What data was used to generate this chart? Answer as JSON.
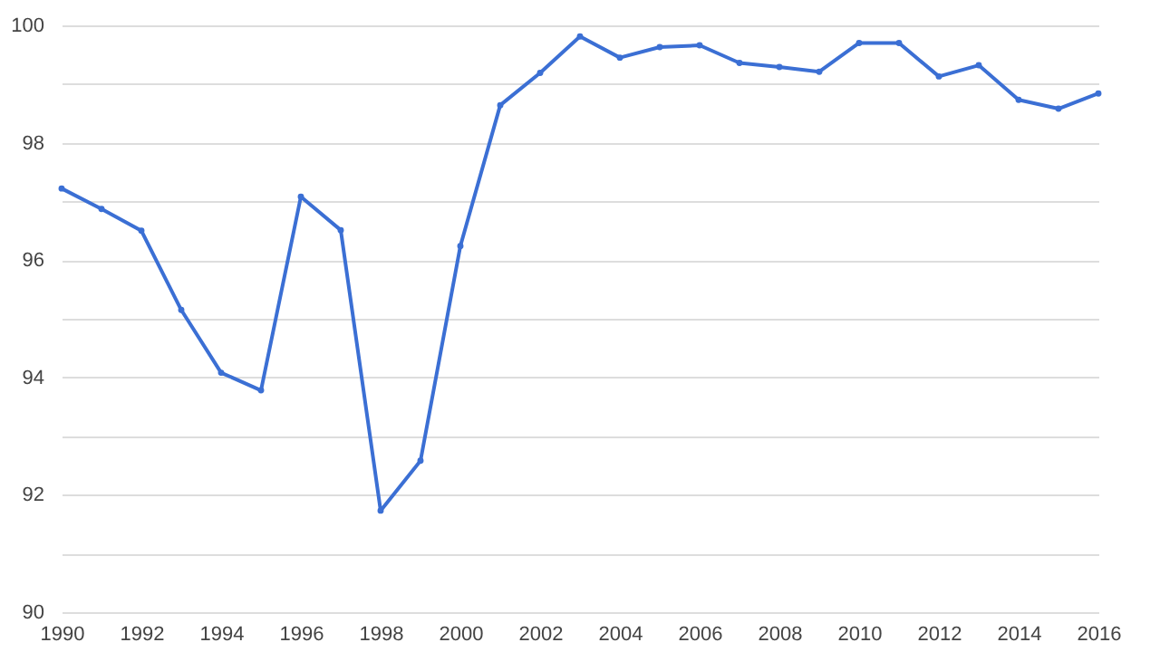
{
  "chart_data": {
    "type": "line",
    "x": [
      1990,
      1991,
      1992,
      1993,
      1994,
      1995,
      1996,
      1997,
      1998,
      1999,
      2000,
      2001,
      2002,
      2003,
      2004,
      2005,
      2006,
      2007,
      2008,
      2009,
      2010,
      2011,
      2012,
      2013,
      2014,
      2015,
      2016
    ],
    "series": [
      {
        "color": "#3b6fd4",
        "values": [
          97.22,
          96.87,
          96.5,
          95.15,
          94.08,
          93.78,
          97.08,
          96.51,
          91.73,
          92.58,
          96.24,
          98.64,
          99.19,
          99.81,
          99.45,
          99.63,
          99.66,
          99.36,
          99.29,
          99.21,
          99.7,
          99.7,
          99.13,
          99.32,
          98.73,
          98.58,
          98.84
        ]
      }
    ],
    "xlim": [
      1990,
      2016
    ],
    "xticks": [
      1990,
      1992,
      1994,
      1996,
      1998,
      2000,
      2002,
      2004,
      2006,
      2008,
      2010,
      2012,
      2014,
      2016
    ],
    "ylim": [
      90,
      100
    ],
    "yticks": [
      90,
      {
        "value": 91,
        "label": null
      },
      92,
      {
        "value": 93,
        "label": null
      },
      94,
      {
        "value": 95,
        "label": null
      },
      96,
      {
        "value": 97,
        "label": null
      },
      98,
      {
        "value": 99,
        "label": null
      },
      100
    ],
    "grid": "y",
    "marker": "circle",
    "line_style": "solid"
  }
}
